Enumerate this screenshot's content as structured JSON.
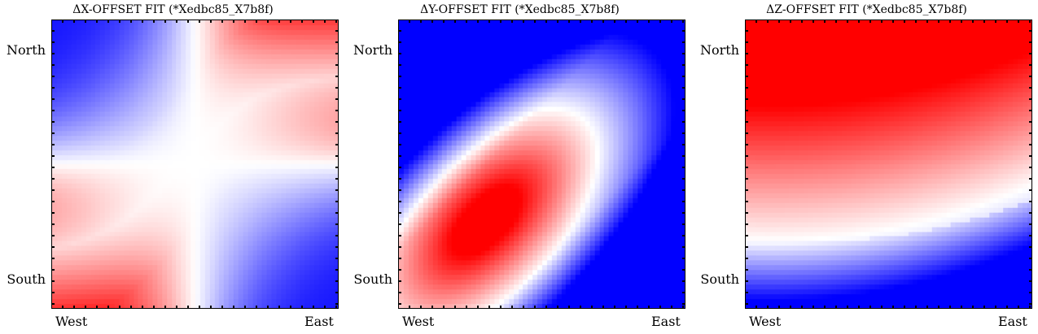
{
  "chart_data": [
    {
      "type": "heatmap",
      "title": "ΔX-OFFSET FIT (*Xedbc85_X7b8f)",
      "x_tick_labels": [
        "West",
        "East"
      ],
      "y_tick_labels": [
        "North",
        "South"
      ],
      "colormap": "bwr",
      "color_low": "#0000ff",
      "color_mid": "#ffffff",
      "color_high": "#ff0000",
      "pattern": "saddle: red in top-right and bottom-left corners, blue in top-left and bottom-right corners, white diagonal band"
    },
    {
      "type": "heatmap",
      "title": "ΔY-OFFSET FIT (*Xedbc85_X7b8f)",
      "x_tick_labels": [
        "West",
        "East"
      ],
      "y_tick_labels": [
        "North",
        "South"
      ],
      "colormap": "bwr",
      "color_low": "#0000ff",
      "color_mid": "#ffffff",
      "color_high": "#ff0000",
      "pattern": "elliptical red maximum in lower-left, blue toward top-left and bottom-right corners"
    },
    {
      "type": "heatmap",
      "title": "ΔZ-OFFSET FIT (*Xedbc85_X7b8f)",
      "x_tick_labels": [
        "West",
        "East"
      ],
      "y_tick_labels": [
        "North",
        "South"
      ],
      "colormap": "bwr",
      "color_low": "#0000ff",
      "color_mid": "#ffffff",
      "color_high": "#ff0000",
      "pattern": "red at top fading downward, curved white band, blue along bottom edge"
    }
  ]
}
